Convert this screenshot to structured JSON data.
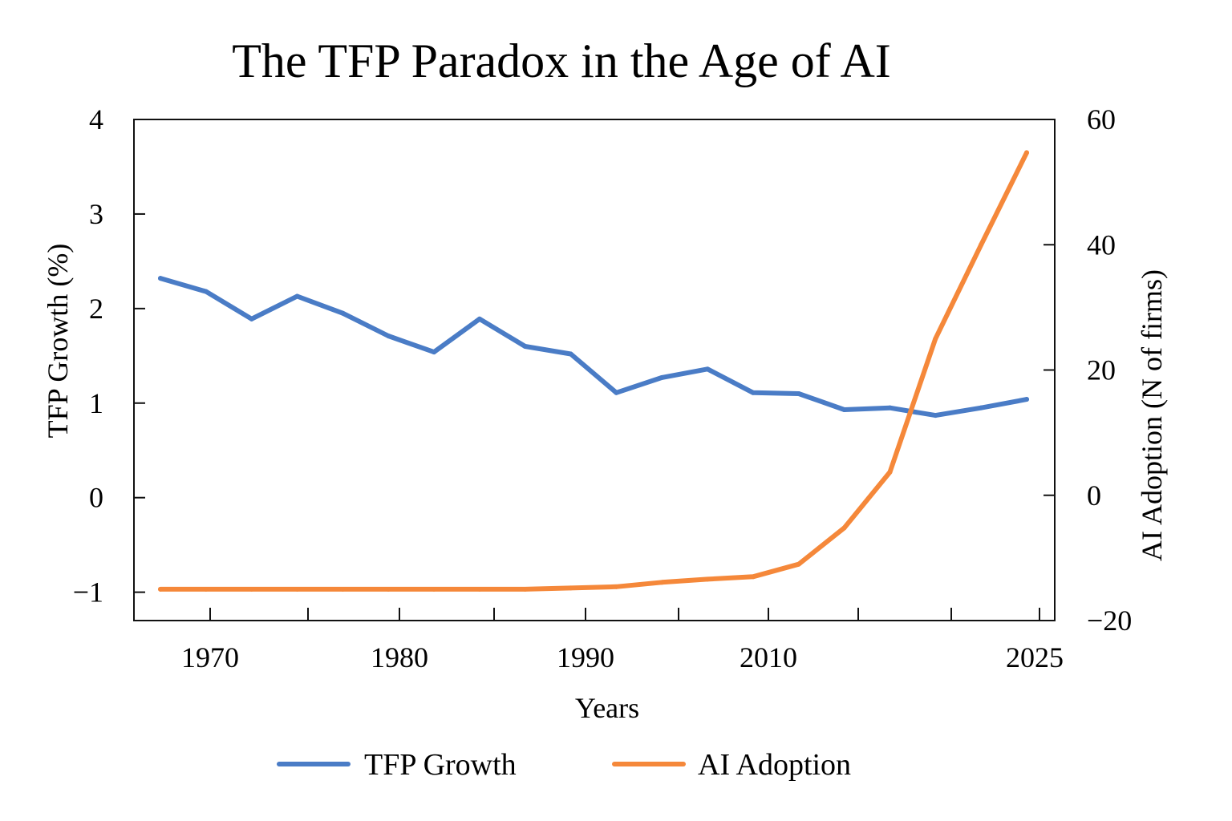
{
  "chart_data": {
    "type": "line",
    "title": "The TFP Paradox in the Age of AI",
    "xlabel": "Years",
    "ylabel_left": "TFP Growth (%)",
    "ylabel_right": "AI Adoption (N of firms)",
    "x_tick_labels": [
      "1970",
      "1980",
      "1990",
      "2010",
      "2025"
    ],
    "y_left_ticks": [
      "4",
      "3",
      "2",
      "1",
      "0",
      "−1"
    ],
    "y_right_ticks": [
      "60",
      "40",
      "20",
      "0",
      "−20"
    ],
    "ylim_left": [
      -1.3,
      4
    ],
    "ylim_right": [
      -20,
      60
    ],
    "grid": false,
    "legend_position": "bottom",
    "series": [
      {
        "name": "TFP Growth",
        "axis": "left",
        "color": "#4a7cc6",
        "values": [
          2.32,
          2.18,
          1.89,
          2.13,
          1.95,
          1.71,
          1.54,
          1.89,
          1.6,
          1.52,
          1.11,
          1.27,
          1.36,
          1.11,
          1.1,
          0.93,
          0.95,
          0.87,
          0.95,
          1.04
        ]
      },
      {
        "name": "AI Adoption",
        "axis": "right",
        "color": "#f5883a",
        "values": [
          -15,
          -15,
          -15,
          -15,
          -15,
          -15,
          -15,
          -15,
          -15,
          -14.8,
          -14.6,
          -13.9,
          -13.4,
          -13.0,
          -11.0,
          -5.2,
          3.7,
          25.0,
          40.0,
          54.7
        ]
      }
    ]
  }
}
